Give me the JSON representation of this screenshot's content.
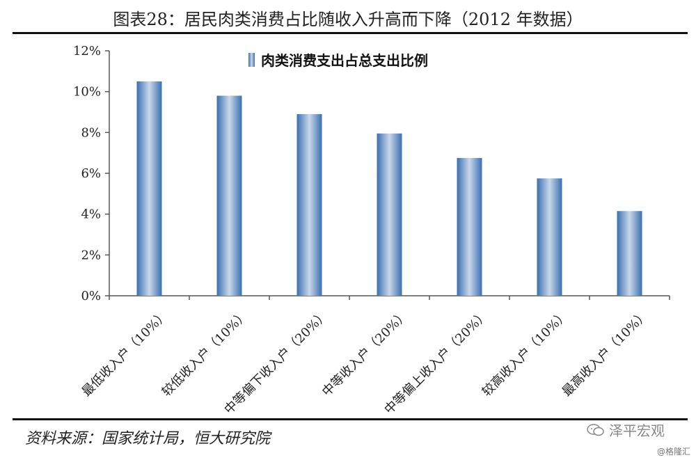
{
  "header": {
    "title": "图表28：居民肉类消费占比随收入升高而下降（2012 年数据）"
  },
  "footer": {
    "source": "资料来源：国家统计局，恒大研究院",
    "brand": "泽平宏观",
    "brand_icon": "chat-bubbles-icon",
    "watermark": "@格隆汇"
  },
  "colors": {
    "bar_edge": "#3a6fb0",
    "bar_center": "#c9d8ea",
    "axis": "#555555"
  },
  "chart_data": {
    "type": "bar",
    "categories": [
      "最低收入户（10%）",
      "较低收入户（10%）",
      "中等偏下收入户（20%）",
      "中等收入户（20%）",
      "中等偏上收入户（20%）",
      "较高收入户（10%）",
      "最高收入户（10%）"
    ],
    "series": [
      {
        "name": "肉类消费支出占总支出比例",
        "values": [
          10.5,
          9.8,
          8.9,
          7.95,
          6.75,
          5.75,
          4.15
        ]
      }
    ],
    "ylim": [
      0,
      12
    ],
    "yticks": [
      "0%",
      "2%",
      "4%",
      "6%",
      "8%",
      "10%",
      "12%"
    ],
    "ytick_values": [
      0,
      2,
      4,
      6,
      8,
      10,
      12
    ],
    "grid": false,
    "legend_position": "top-center"
  }
}
